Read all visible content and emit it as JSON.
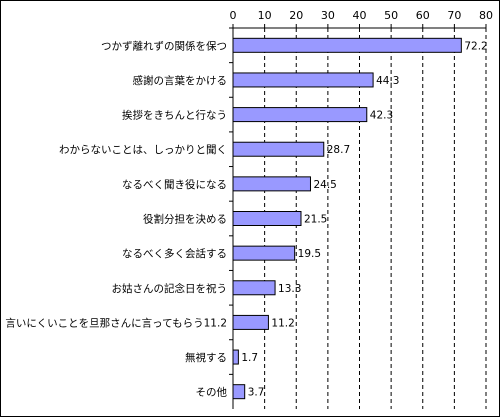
{
  "chart_data": {
    "type": "bar",
    "orientation": "horizontal",
    "categories": [
      "つかず離れずの関係を保つ",
      "感謝の言葉をかける",
      "挨拶をきちんと行なう",
      "わからないことは、しっかりと聞く",
      "なるべく聞き役になる",
      "役割分担を決める",
      "なるべく多く会話する",
      "お姑さんの記念日を祝う",
      "言いにくいことを旦那さんに言ってもらう11.2",
      "無視する",
      "その他"
    ],
    "values": [
      72.2,
      44.3,
      42.3,
      28.7,
      24.5,
      21.5,
      19.5,
      13.3,
      11.2,
      1.7,
      3.7
    ],
    "value_labels": [
      "72.2",
      "44.3",
      "42.3",
      "28.7",
      "24.5",
      "21.5",
      "19.5",
      "13.3",
      "11.2",
      "1.7",
      "3.7"
    ],
    "x_ticks": [
      "0",
      "10",
      "20",
      "30",
      "40",
      "50",
      "60",
      "70",
      "80"
    ],
    "xlim": [
      0,
      80
    ],
    "x_axis_position": "top",
    "grid": "vertical dashed",
    "legend": "none",
    "colors": {
      "bar_fill": "#9999ff",
      "bar_stroke": "#000000",
      "grid": "#000000"
    }
  }
}
